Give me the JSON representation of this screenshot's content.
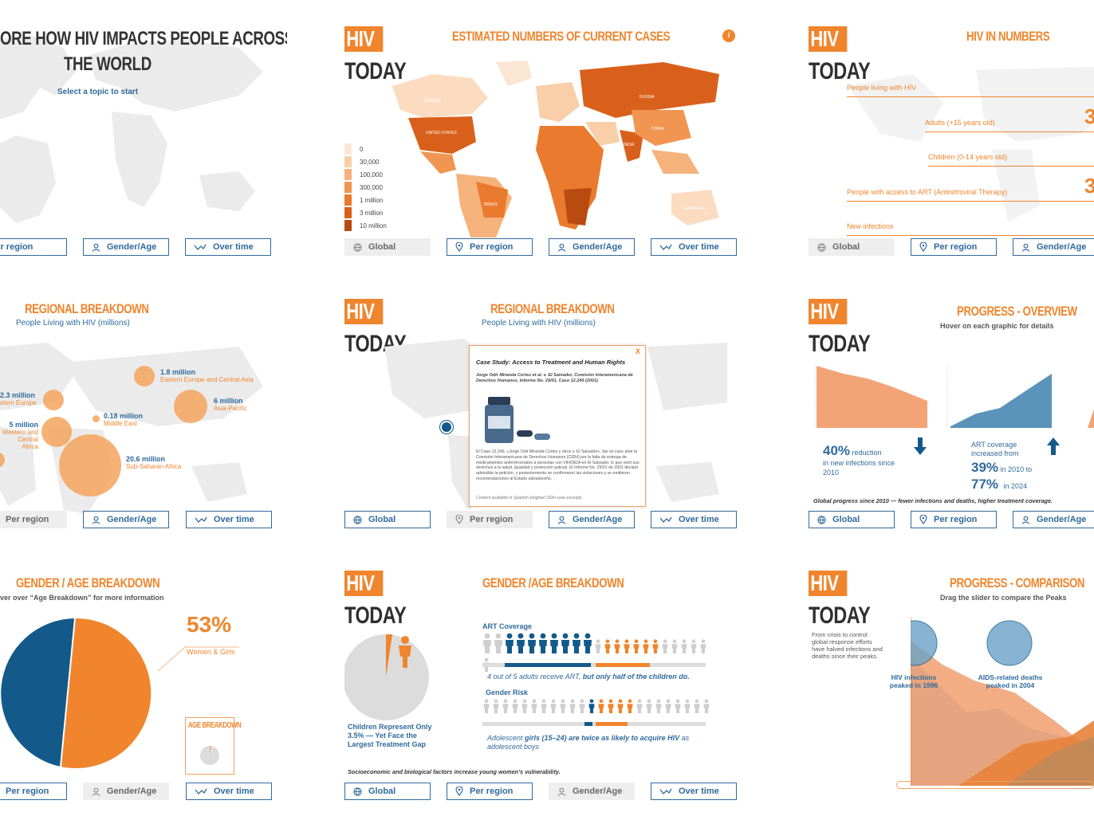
{
  "colors": {
    "orange": "#f0852d",
    "blue": "#2f6a9c",
    "darkblue": "#135a8a",
    "grey": "#e9e9e9"
  },
  "tabs": {
    "global": "Global",
    "region": "Per region",
    "gender": "Gender/Age",
    "time": "Over time"
  },
  "logo": {
    "hiv": "HIV",
    "today": "TODAY"
  },
  "p1": {
    "title_line1": "ORE HOW HIV IMPACTS PEOPLE ACROSS",
    "title_line2": "THE WORLD",
    "subtitle": "Select a topic to start"
  },
  "p2": {
    "title": "ESTIMATED NUMBERS OF CURRENT CASES",
    "info_icon": "i",
    "legend": [
      "0",
      "30,000",
      "100,000",
      "300,000",
      "1 million",
      "3 million",
      "10 million"
    ],
    "legend_colors": [
      "#fbe6d4",
      "#f8cfa8",
      "#f5b27b",
      "#f19552",
      "#ea7a2e",
      "#d9601b",
      "#b94a10"
    ],
    "countries": {
      "canada": "CANADA",
      "usa": "UNITED STATES",
      "russia": "RUSSIA",
      "china": "CHINA",
      "india": "INDIA",
      "brazil": "BRAZIL",
      "australia": "AUSTRALIA"
    }
  },
  "p3": {
    "title": "HIV IN NUMBERS",
    "rows": [
      {
        "label": "People living with HIV",
        "value": ""
      },
      {
        "label": "Adults (+15 years old)",
        "value": "3"
      },
      {
        "label": "Children (0-14 years old)",
        "value": ""
      },
      {
        "label": "People with access to ART (Antiretroviral Therapy)",
        "value": "3"
      },
      {
        "label": "New infections",
        "value": ""
      }
    ]
  },
  "p4": {
    "title": "REGIONAL BREAKDOWN",
    "subtitle": "People Living with HIV (millions)",
    "bubbles": [
      {
        "value": "1.8 million",
        "region": "Eastern Europe and Central Asia"
      },
      {
        "value": "6 million",
        "region": "Asia-Pacific"
      },
      {
        "value": "2.3 million",
        "region": "stern Europe"
      },
      {
        "value": "0.18 million",
        "region": "Middle East"
      },
      {
        "value": "5 million",
        "region": "Western and Central Africa"
      },
      {
        "value": "20.6 million",
        "region": "Sub-Saharan Africa"
      }
    ]
  },
  "p5": {
    "title": "REGIONAL BREAKDOWN",
    "subtitle": "People Living with HIV (millions)",
    "popup": {
      "close": "X",
      "heading": "Case Study: Access to Treatment and Human Rights",
      "citation": "Jorge Odir Miranda Cortez et al. v. El Salvador, Comisión Interamericana de Derechos Humanos, Informe No. 29/01, Caso 12.249 (2001)",
      "body": "El Caso 12.249, «Jorge Odir Miranda Cortez y otros v. El Salvador», fue un caso ante la Comisión Interamericana de Derechos Humanos (CIDH) por la falta de entrega de medicamentos antirretrovirales a personas con VIH/SIDA en El Salvador, lo que violó sus derechos a la salud, igualdad y protección judicial. El Informe No. 29/01 de 2001 declaró admisible la petición, y posteriormente se confirmaron las violaciones y se emitieron recomendaciones al Estado salvadoreño.",
      "footer": "Content available in Spanish (original CIDH case excerpt)."
    }
  },
  "p6": {
    "title": "PROGRESS - OVERVIEW",
    "subtitle": "Hover on each graphic for details",
    "stat1_big": "40%",
    "stat1_small": "reduction",
    "stat1_rest": "in new infections since 2010",
    "stat2_intro": "ART coverage increased from",
    "stat2_a": "39%",
    "stat2_a_year": "in 2010 to",
    "stat2_b": "77%",
    "stat2_b_year": "in 2024",
    "footer": "Global progress since 2010 — fewer infections and deaths, higher treatment coverage."
  },
  "p7": {
    "title": "GENDER / AGE BREAKDOWN",
    "subtitle": "ver over “Age Breakdown” for more information",
    "percent": "53%",
    "percent_label": "Women & Girls",
    "mini_title": "AGE BREAKDOWN"
  },
  "p8": {
    "caption": "Children Represent Only 3.5% — Yet Face the Largest Treatment Gap",
    "footer": "Socioeconomic and biological factors increase young women’s vulnerability."
  },
  "p9": {
    "title": "GENDER /AGE BREAKDOWN",
    "art_label": "ART Coverage",
    "art_caption_a": "4 out of 5 adults receive ART,",
    "art_caption_b": "but only half of the children do.",
    "risk_label": "Gender Risk",
    "risk_caption_a": "Adolescent",
    "risk_caption_b": "girls (15–24) are twice as likely to acquire HIV",
    "risk_caption_c": "as adolescent boys"
  },
  "p10": {
    "title": "PROGRESS - COMPARISON",
    "subtitle": "Drag the slider to compare the Peaks",
    "intro": "From crisis to control: global response efforts have halved infections and deaths since their peaks.",
    "peak1": "HIV infections peaked in 1996",
    "peak2": "AIDS-related deaths peaked in 2004"
  }
}
